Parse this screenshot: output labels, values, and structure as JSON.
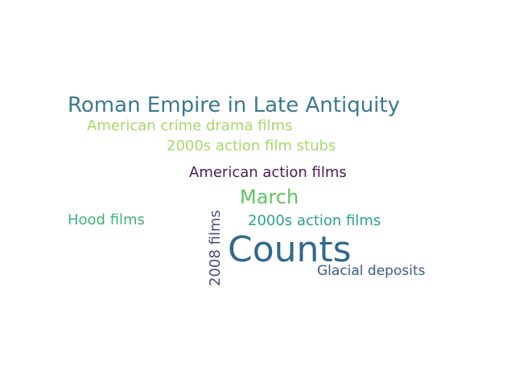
{
  "words": [
    {
      "text": "Roman Empire in Late Antiquity",
      "color": "#3b7a8f"
    },
    {
      "text": "American crime drama films",
      "color": "#a6d96a"
    },
    {
      "text": "2000s action film stubs",
      "color": "#a6d96a"
    },
    {
      "text": "American action films",
      "color": "#4a1a5c"
    },
    {
      "text": "March",
      "color": "#5fc560"
    },
    {
      "text": "Hood films",
      "color": "#3fb47a"
    },
    {
      "text": "2000s action films",
      "color": "#2aa48a"
    },
    {
      "text": "Counts",
      "color": "#31688e"
    },
    {
      "text": "Glacial deposits",
      "color": "#3f5a8a"
    },
    {
      "text": "2008 films",
      "color": "#454f85"
    }
  ]
}
